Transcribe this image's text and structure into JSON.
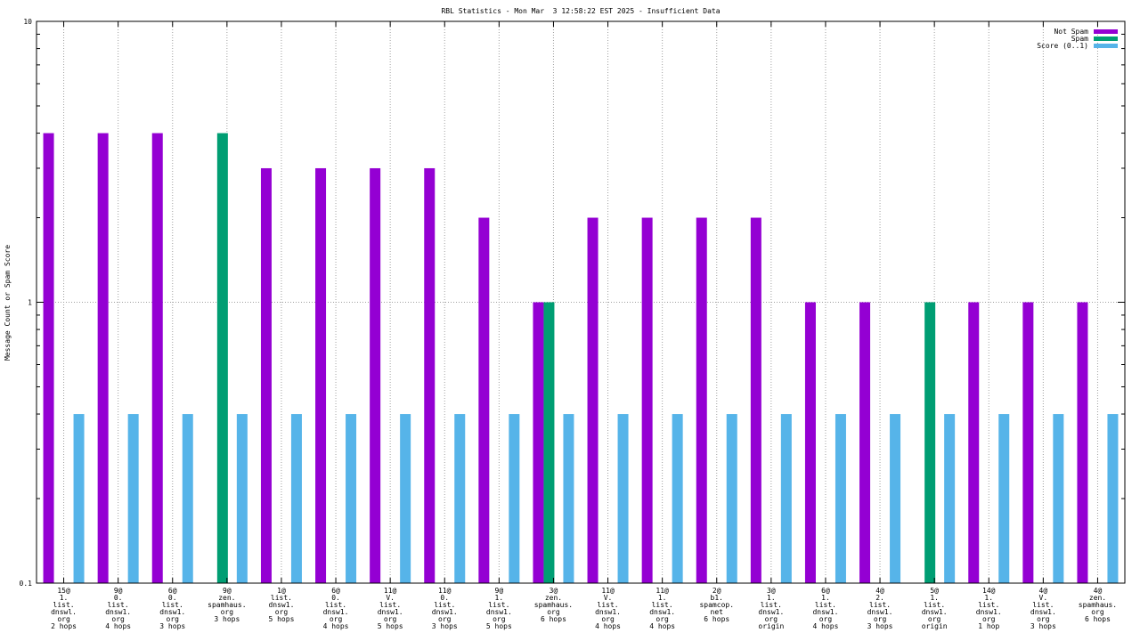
{
  "chart_data": {
    "type": "bar",
    "title": "RBL Statistics - Mon Mar  3 12:58:22 EST 2025 - Insufficient Data",
    "ylabel": "Message Count or Spam Score",
    "xlabel": "",
    "yscale": "log",
    "ylim": [
      0.1,
      10
    ],
    "y_ticks": [
      "0.1",
      "1",
      "10"
    ],
    "grid": true,
    "legend_position": "top-right",
    "categories": [
      [
        "15@",
        "1.",
        "list.",
        "dnswl.",
        "org",
        "2 hops"
      ],
      [
        "9@",
        "0.",
        "list.",
        "dnsw1.",
        "org",
        "4 hops"
      ],
      [
        "6@",
        "0.",
        "list.",
        "dnsw1.",
        "org",
        "3 hops"
      ],
      [
        "9@",
        "zen.",
        "spamhaus.",
        "org",
        "3 hops"
      ],
      [
        "1@",
        "list.",
        "dnsw1.",
        "org",
        "5 hops"
      ],
      [
        "6@",
        "0.",
        "list.",
        "dnsw1.",
        "org",
        "4 hops"
      ],
      [
        "11@",
        "V.",
        "list.",
        "dnsw1.",
        "org",
        "5 hops"
      ],
      [
        "11@",
        "0.",
        "list.",
        "dnsw1.",
        "org",
        "3 hops"
      ],
      [
        "9@",
        "1.",
        "list.",
        "dnsw1.",
        "org",
        "5 hops"
      ],
      [
        "3@",
        "zen.",
        "spamhaus.",
        "org",
        "6 hops"
      ],
      [
        "11@",
        "V.",
        "list.",
        "dnsw1.",
        "org",
        "4 hops"
      ],
      [
        "11@",
        "1.",
        "list.",
        "dnsw1.",
        "org",
        "4 hops"
      ],
      [
        "2@",
        "b1.",
        "spamcop.",
        "net",
        "6 hops"
      ],
      [
        "3@",
        "1.",
        "list.",
        "dnsw1.",
        "org",
        "origin"
      ],
      [
        "6@",
        "1.",
        "list.",
        "dnsw1.",
        "org",
        "4 hops"
      ],
      [
        "4@",
        "2.",
        "list.",
        "dnsw1.",
        "org",
        "3 hops"
      ],
      [
        "5@",
        "1.",
        "list.",
        "dnsw1.",
        "org",
        "origin"
      ],
      [
        "14@",
        "1.",
        "list.",
        "dnsw1.",
        "org",
        "1 hop"
      ],
      [
        "4@",
        "V.",
        "list.",
        "dnsw1.",
        "org",
        "3 hops"
      ],
      [
        "4@",
        "zen.",
        "spamhaus.",
        "org",
        "6 hops"
      ]
    ],
    "series": [
      {
        "name": "Not Spam",
        "color": "#9400d3",
        "values": [
          4,
          4,
          4,
          null,
          3,
          3,
          3,
          3,
          2,
          1,
          2,
          2,
          2,
          2,
          1,
          1,
          null,
          1,
          1,
          1
        ]
      },
      {
        "name": "Spam",
        "color": "#009e73",
        "values": [
          null,
          null,
          null,
          4,
          null,
          null,
          null,
          null,
          null,
          1,
          null,
          null,
          null,
          null,
          null,
          null,
          1,
          null,
          null,
          null
        ]
      },
      {
        "name": "Score (0..1)",
        "color": "#56b4e9",
        "values": [
          0.4,
          0.4,
          0.4,
          0.4,
          0.4,
          0.4,
          0.4,
          0.4,
          0.4,
          0.4,
          0.4,
          0.4,
          0.4,
          0.4,
          0.4,
          0.4,
          0.4,
          0.4,
          0.4,
          0.4
        ]
      }
    ]
  }
}
